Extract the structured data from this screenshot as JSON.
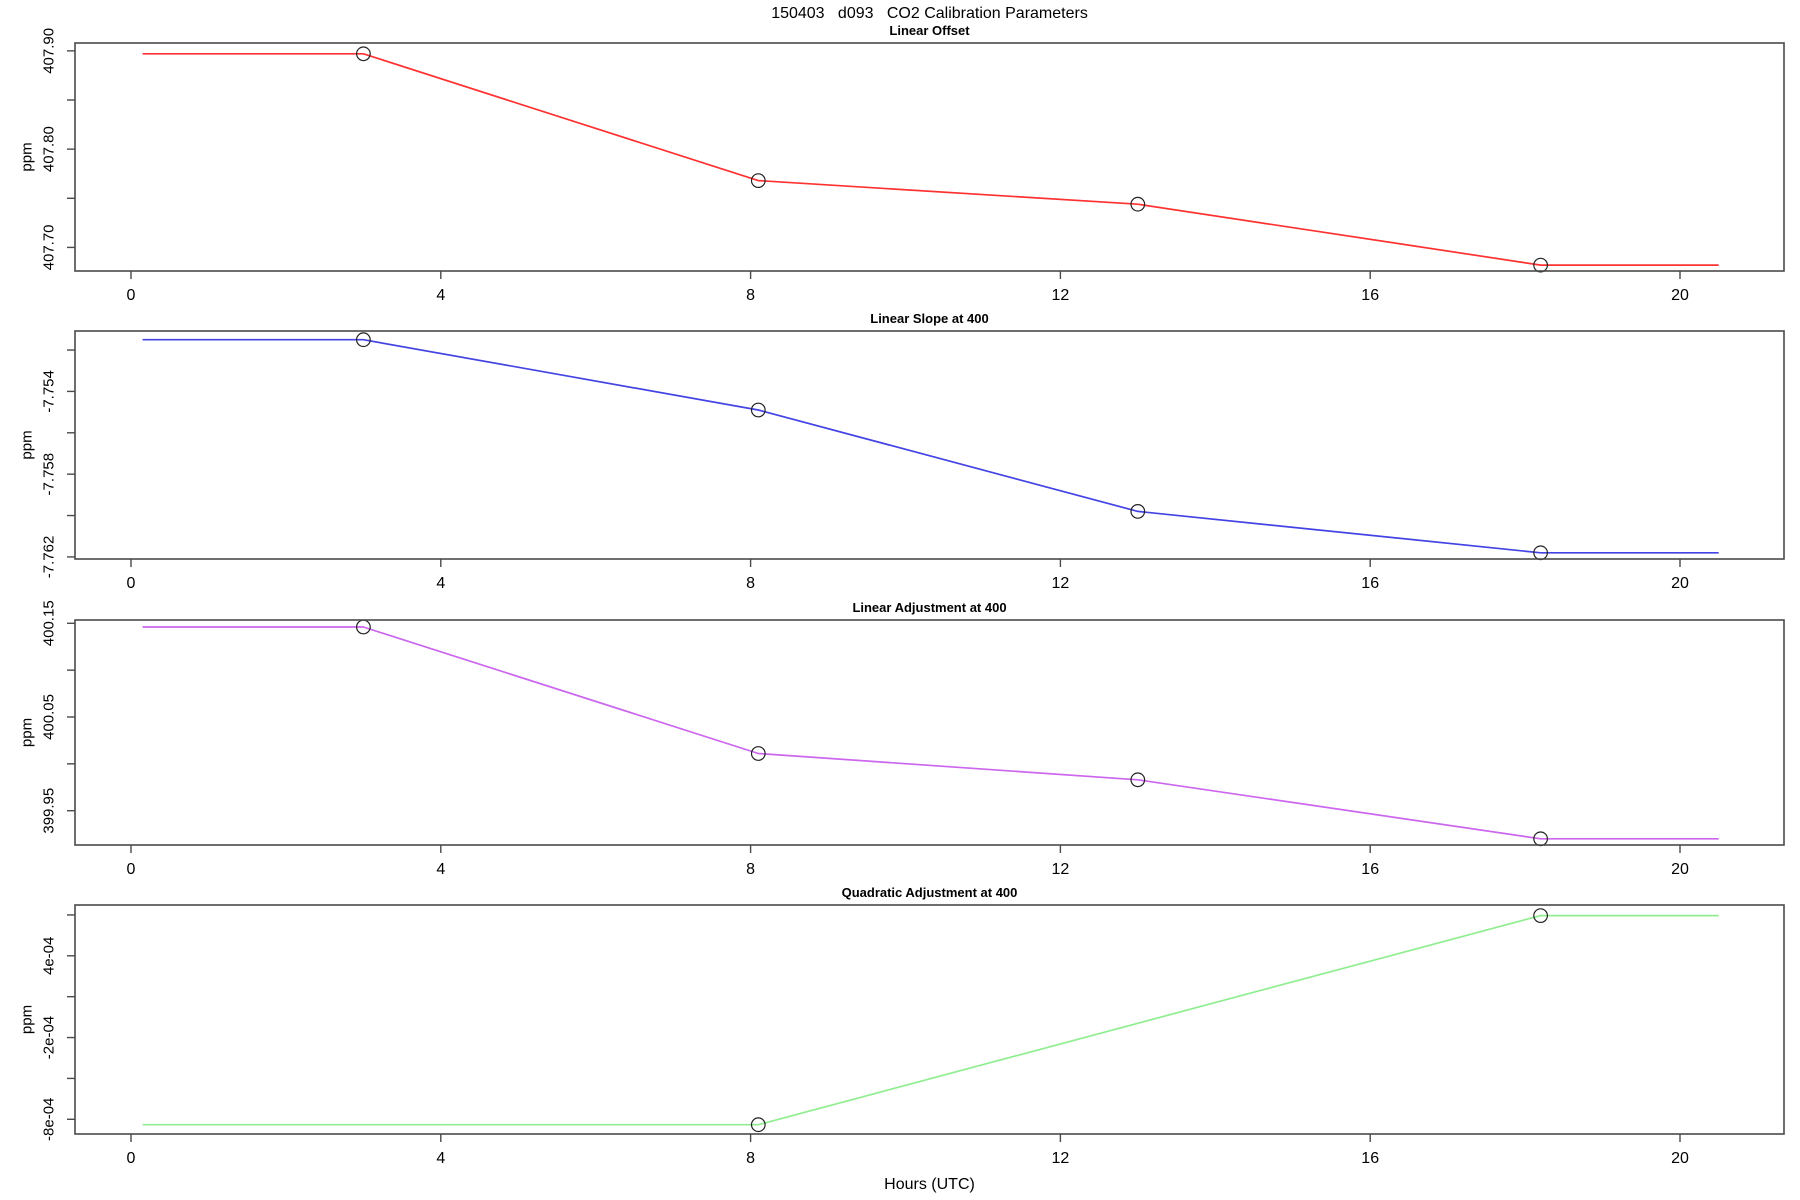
{
  "page": {
    "title": "150403   d093   CO2 Calibration Parameters",
    "xlabel": "Hours (UTC)",
    "background": "#FFFFFF",
    "axis_color": "#4A4A4A",
    "text_color": "#000000",
    "marker_color": "#222222"
  },
  "chart_data": [
    {
      "type": "line",
      "title": "Linear Offset",
      "ylabel": "ppm",
      "line_color": "#FF3232",
      "marker": "open-circle",
      "x": [
        3,
        8.1,
        13,
        18.2
      ],
      "values": [
        407.897,
        407.768,
        407.744,
        407.682
      ],
      "line_path": [
        [
          0.15,
          407.897
        ],
        [
          3,
          407.897
        ],
        [
          8.1,
          407.768
        ],
        [
          13,
          407.744
        ],
        [
          18.2,
          407.682
        ],
        [
          20.5,
          407.682
        ]
      ],
      "xlim": [
        -0.72,
        21.34
      ],
      "ylim": [
        407.676,
        407.908
      ],
      "yticks": [
        {
          "v": 407.9,
          "label": "407.90"
        },
        {
          "v": 407.85,
          "label": ""
        },
        {
          "v": 407.8,
          "label": "407.80"
        },
        {
          "v": 407.75,
          "label": ""
        },
        {
          "v": 407.7,
          "label": "407.70"
        }
      ],
      "xticks": [
        {
          "v": 0,
          "label": "0"
        },
        {
          "v": 4,
          "label": "4"
        },
        {
          "v": 8,
          "label": "8"
        },
        {
          "v": 12,
          "label": "12"
        },
        {
          "v": 16,
          "label": "16"
        },
        {
          "v": 20,
          "label": "20"
        }
      ],
      "grid": false,
      "legend": null
    },
    {
      "type": "line",
      "title": "Linear Slope at 400",
      "ylabel": "ppm",
      "line_color": "#4444E4",
      "marker": "open-circle",
      "x": [
        3,
        8.1,
        13,
        18.2
      ],
      "values": [
        -7.7515,
        -7.7549,
        -7.7598,
        -7.7618
      ],
      "line_path": [
        [
          0.15,
          -7.7515
        ],
        [
          3,
          -7.7515
        ],
        [
          8.1,
          -7.7549
        ],
        [
          13,
          -7.7598
        ],
        [
          18.2,
          -7.7618
        ],
        [
          20.5,
          -7.7618
        ]
      ],
      "xlim": [
        -0.72,
        21.34
      ],
      "ylim": [
        -7.7621,
        -7.75108
      ],
      "yticks": [
        {
          "v": -7.752,
          "label": ""
        },
        {
          "v": -7.754,
          "label": "-7.754"
        },
        {
          "v": -7.756,
          "label": ""
        },
        {
          "v": -7.758,
          "label": "-7.758"
        },
        {
          "v": -7.76,
          "label": ""
        },
        {
          "v": -7.762,
          "label": "-7.762"
        }
      ],
      "xticks": [
        {
          "v": 0,
          "label": "0"
        },
        {
          "v": 4,
          "label": "4"
        },
        {
          "v": 8,
          "label": "8"
        },
        {
          "v": 12,
          "label": "12"
        },
        {
          "v": 16,
          "label": "16"
        },
        {
          "v": 20,
          "label": "20"
        }
      ],
      "grid": false,
      "legend": null
    },
    {
      "type": "line",
      "title": "Linear Adjustment at 400",
      "ylabel": "ppm",
      "line_color": "#CC66EE",
      "marker": "open-circle",
      "x": [
        3,
        8.1,
        13,
        18.2
      ],
      "values": [
        400.146,
        400.011,
        399.983,
        399.92
      ],
      "line_path": [
        [
          0.15,
          400.146
        ],
        [
          3,
          400.146
        ],
        [
          8.1,
          400.011
        ],
        [
          13,
          399.983
        ],
        [
          18.2,
          399.92
        ],
        [
          20.5,
          399.92
        ]
      ],
      "xlim": [
        -0.72,
        21.34
      ],
      "ylim": [
        399.9134,
        400.1535
      ],
      "yticks": [
        {
          "v": 400.15,
          "label": "400.15"
        },
        {
          "v": 400.1,
          "label": ""
        },
        {
          "v": 400.05,
          "label": "400.05"
        },
        {
          "v": 400.0,
          "label": ""
        },
        {
          "v": 399.95,
          "label": "399.95"
        }
      ],
      "xticks": [
        {
          "v": 0,
          "label": "0"
        },
        {
          "v": 4,
          "label": "4"
        },
        {
          "v": 8,
          "label": "8"
        },
        {
          "v": 12,
          "label": "12"
        },
        {
          "v": 16,
          "label": "16"
        },
        {
          "v": 20,
          "label": "20"
        }
      ],
      "grid": false,
      "legend": null
    },
    {
      "type": "line",
      "title": "Quadratic Adjustment at 400",
      "ylabel": "ppm",
      "line_color": "#90EE90",
      "marker": "open-circle",
      "x": [
        8.1,
        18.2
      ],
      "values": [
        -0.00084,
        0.000695
      ],
      "line_path": [
        [
          0.15,
          -0.00084
        ],
        [
          8.1,
          -0.00084
        ],
        [
          18.2,
          0.000695
        ],
        [
          20.5,
          0.000695
        ]
      ],
      "xlim": [
        -0.72,
        21.34
      ],
      "ylim": [
        -0.000908,
        0.000773
      ],
      "yticks": [
        {
          "v": 0.0007,
          "label": ""
        },
        {
          "v": 0.0004,
          "label": "4e-04"
        },
        {
          "v": 0.0001,
          "label": ""
        },
        {
          "v": -0.0002,
          "label": "-2e-04"
        },
        {
          "v": -0.0005,
          "label": ""
        },
        {
          "v": -0.0008,
          "label": "-8e-04"
        }
      ],
      "xticks": [
        {
          "v": 0,
          "label": "0"
        },
        {
          "v": 4,
          "label": "4"
        },
        {
          "v": 8,
          "label": "8"
        },
        {
          "v": 12,
          "label": "12"
        },
        {
          "v": 16,
          "label": "16"
        },
        {
          "v": 20,
          "label": "20"
        }
      ],
      "grid": false,
      "legend": null
    }
  ]
}
